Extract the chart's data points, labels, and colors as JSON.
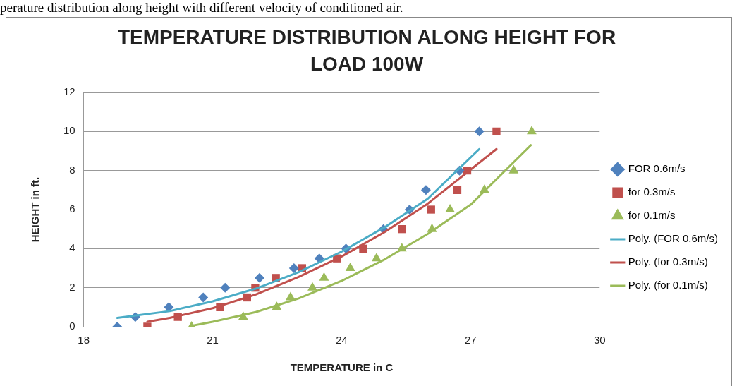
{
  "chart_data": {
    "type": "scatter",
    "title": "TEMPERATURE DISTRIBUTION ALONG HEIGHT FOR LOAD 100W",
    "xlabel": "TEMPERATURE in C",
    "ylabel": "HEIGHT in ft.",
    "annotations": [
      "perature distribution along height with different velocity of conditioned air."
    ],
    "xlim": [
      18,
      30
    ],
    "xticks": [
      18,
      21,
      24,
      27,
      30
    ],
    "ylim": [
      0,
      12
    ],
    "yticks": [
      0,
      2,
      4,
      6,
      8,
      10,
      12
    ],
    "grid": "y",
    "legend": "right",
    "series": [
      {
        "name": "FOR 0.6m/s",
        "color": "#4f81bd",
        "marker": "diamond",
        "x": [
          18.78,
          19.2,
          19.98,
          20.78,
          21.29,
          22.09,
          22.89,
          23.48,
          24.1,
          24.97,
          25.58,
          25.96,
          26.74,
          27.2
        ],
        "values": [
          0,
          0.5,
          1,
          1.5,
          2,
          2.5,
          3,
          3.5,
          4,
          5,
          6,
          7,
          8,
          10
        ]
      },
      {
        "name": "for 0.3m/s",
        "color": "#c0504d",
        "marker": "square",
        "x": [
          19.48,
          20.19,
          21.17,
          21.8,
          21.99,
          22.47,
          23.08,
          23.89,
          24.5,
          25.4,
          26.08,
          26.69,
          26.92,
          27.6
        ],
        "values": [
          0,
          0.5,
          1,
          1.5,
          2,
          2.5,
          3,
          3.5,
          4,
          5,
          6,
          7,
          8,
          10
        ]
      },
      {
        "name": "for 0.1m/s",
        "color": "#9bbb59",
        "marker": "triangle",
        "x": [
          20.51,
          21.71,
          22.49,
          22.81,
          23.32,
          23.59,
          24.2,
          24.81,
          25.4,
          26.1,
          26.52,
          27.32,
          28.0,
          28.42
        ],
        "values": [
          0,
          0.5,
          1,
          1.5,
          2,
          2.5,
          3,
          3.5,
          4,
          5,
          6,
          7,
          8,
          10
        ]
      },
      {
        "name": "Poly. (FOR 0.6m/s)",
        "type": "line",
        "color": "#4bacc6",
        "marker": "none",
        "x": [
          18.78,
          20,
          21,
          22,
          23,
          24,
          25,
          26,
          27.2
        ],
        "values": [
          0.45,
          0.8,
          1.3,
          1.95,
          2.8,
          3.85,
          5.1,
          6.55,
          9.1
        ]
      },
      {
        "name": "Poly. (for 0.3m/s)",
        "type": "line",
        "color": "#c0504d",
        "marker": "none",
        "x": [
          19.48,
          20,
          21,
          22,
          23,
          24,
          25,
          26,
          27.6
        ],
        "values": [
          0.25,
          0.45,
          0.95,
          1.65,
          2.55,
          3.6,
          4.85,
          6.3,
          9.1
        ]
      },
      {
        "name": "Poly. (for 0.1m/s)",
        "type": "line",
        "color": "#9bbb59",
        "marker": "none",
        "x": [
          20.51,
          21,
          22,
          23,
          24,
          25,
          26,
          27,
          28.4
        ],
        "values": [
          0.05,
          0.25,
          0.75,
          1.45,
          2.35,
          3.45,
          4.75,
          6.25,
          9.3
        ]
      }
    ]
  }
}
